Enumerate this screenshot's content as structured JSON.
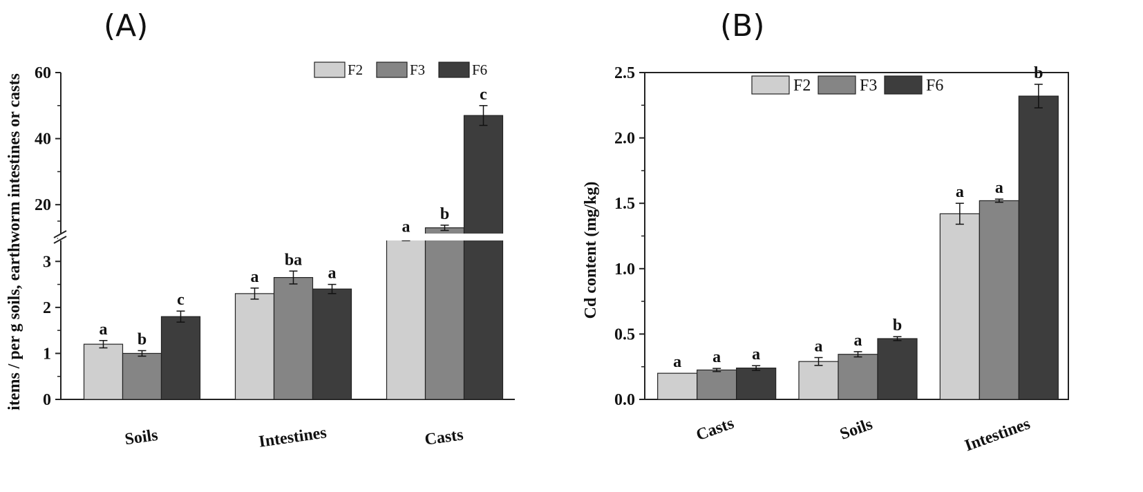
{
  "panels": {
    "a": {
      "label": "(A)"
    },
    "b": {
      "label": "(B)"
    }
  },
  "colors": {
    "F2": "#cfcfcf",
    "F3": "#858585",
    "F6": "#3d3d3d"
  },
  "chart_data": [
    {
      "id": "A",
      "type": "bar",
      "title": "",
      "xlabel": "",
      "ylabel": "items / per g soils, earthworm intestines or casts",
      "y_axis_break": {
        "lower_range": [
          0,
          3.5
        ],
        "upper_range": [
          10,
          60
        ]
      },
      "categories": [
        "Soils",
        "Intestines",
        "Casts"
      ],
      "series": [
        {
          "name": "F2",
          "values": [
            1.2,
            2.3,
            9.5
          ],
          "errors": [
            0.08,
            0.12,
            0.4
          ]
        },
        {
          "name": "F3",
          "values": [
            1.0,
            2.65,
            13.0
          ],
          "errors": [
            0.06,
            0.14,
            0.8
          ]
        },
        {
          "name": "F6",
          "values": [
            1.8,
            2.4,
            47.0
          ],
          "errors": [
            0.12,
            0.1,
            3.0
          ]
        }
      ],
      "significance": [
        [
          "a",
          "b",
          "c"
        ],
        [
          "a",
          "ba",
          "a"
        ],
        [
          "a",
          "b",
          "c"
        ]
      ],
      "lower_ticks": [
        "0",
        "1",
        "2",
        "3"
      ],
      "upper_ticks": [
        "20",
        "40",
        "60"
      ],
      "legend": {
        "position": "top-right",
        "entries": [
          "F2",
          "F3",
          "F6"
        ]
      }
    },
    {
      "id": "B",
      "type": "bar",
      "title": "",
      "xlabel": "",
      "ylabel": "Cd content (mg/kg)",
      "ylim": [
        0,
        2.5
      ],
      "categories": [
        "Casts",
        "Soils",
        "Intestines"
      ],
      "series": [
        {
          "name": "F2",
          "values": [
            0.2,
            0.29,
            1.42
          ],
          "errors": [
            0.0,
            0.03,
            0.08
          ]
        },
        {
          "name": "F3",
          "values": [
            0.225,
            0.345,
            1.52
          ],
          "errors": [
            0.012,
            0.02,
            0.012
          ]
        },
        {
          "name": "F6",
          "values": [
            0.24,
            0.465,
            2.32
          ],
          "errors": [
            0.018,
            0.015,
            0.09
          ]
        }
      ],
      "significance": [
        [
          "a",
          "a",
          "a"
        ],
        [
          "a",
          "a",
          "b"
        ],
        [
          "a",
          "a",
          "b"
        ]
      ],
      "ticks": [
        "0.0",
        "0.5",
        "1.0",
        "1.5",
        "2.0",
        "2.5"
      ],
      "legend": {
        "position": "top-center",
        "entries": [
          "F2",
          "F3",
          "F6"
        ]
      }
    }
  ]
}
